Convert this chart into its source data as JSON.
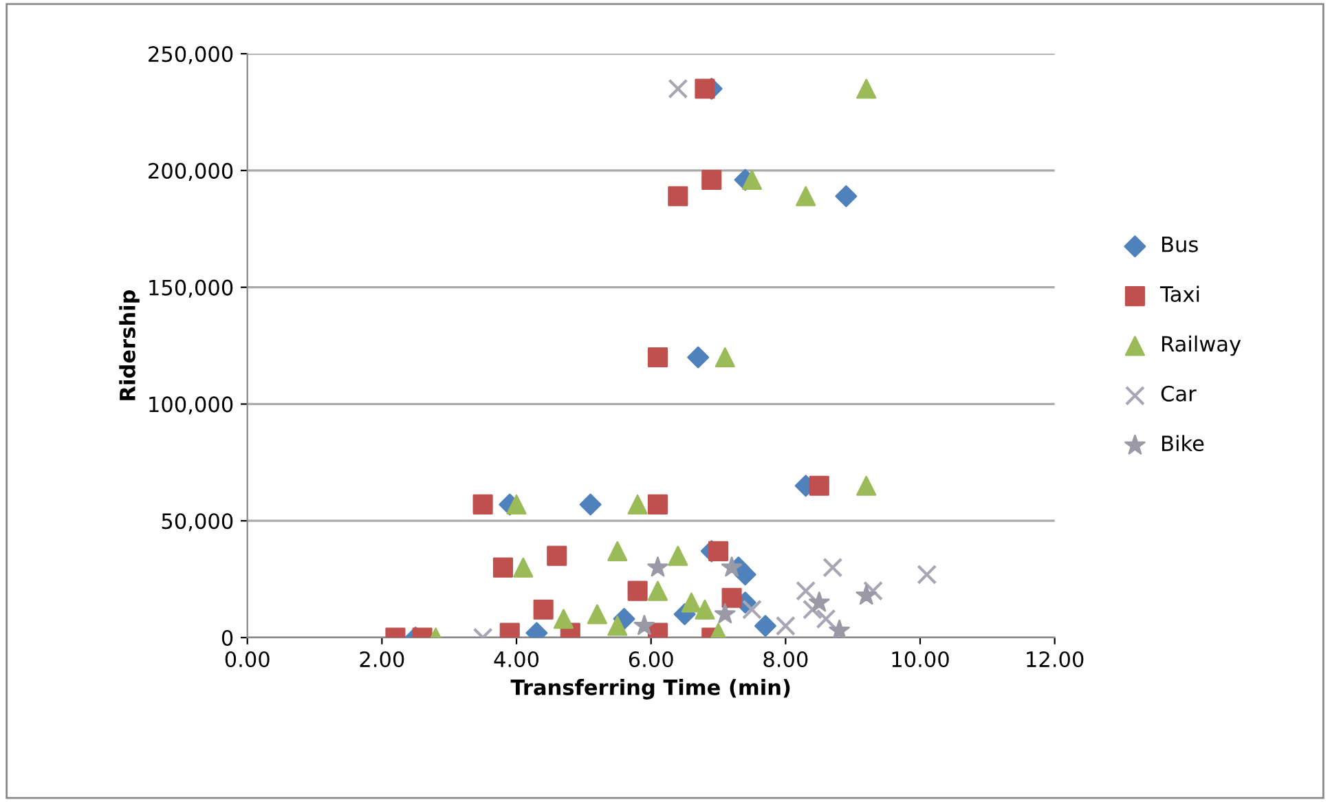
{
  "chart_data": {
    "type": "scatter",
    "xlabel": "Transferring Time (min)",
    "ylabel": "Ridership",
    "xlim": [
      0,
      12
    ],
    "xticks": [
      {
        "value": 0,
        "label": "0.00"
      },
      {
        "value": 2,
        "label": "2.00"
      },
      {
        "value": 4,
        "label": "4.00"
      },
      {
        "value": 6,
        "label": "6.00"
      },
      {
        "value": 8,
        "label": "8.00"
      },
      {
        "value": 10,
        "label": "10.00"
      },
      {
        "value": 12,
        "label": "12.00"
      }
    ],
    "ylim": [
      0,
      250000
    ],
    "yticks": [
      {
        "value": 0,
        "label": "0"
      },
      {
        "value": 50000,
        "label": "50,000"
      },
      {
        "value": 100000,
        "label": "100,000"
      },
      {
        "value": 150000,
        "label": "150,000"
      },
      {
        "value": 200000,
        "label": "200,000"
      },
      {
        "value": 250000,
        "label": "250,000"
      }
    ],
    "grid": "y",
    "legend": "right",
    "series": [
      {
        "name": "Bus",
        "color": "#4f81bd",
        "marker": "diamond",
        "x": [
          6.9,
          7.4,
          8.9,
          6.7,
          8.3,
          3.9,
          5.1,
          6.9,
          7.3,
          7.4,
          7.4,
          7.7,
          5.6,
          6.5,
          4.3,
          2.5
        ],
        "values": [
          235000,
          196000,
          189000,
          120000,
          65000,
          57000,
          57000,
          37000,
          30000,
          27000,
          15000,
          5000,
          8000,
          10000,
          2000,
          0
        ]
      },
      {
        "name": "Taxi",
        "color": "#c0504d",
        "marker": "square",
        "x": [
          6.8,
          6.9,
          6.4,
          6.1,
          8.5,
          3.5,
          6.1,
          3.8,
          4.6,
          7.0,
          7.2,
          5.8,
          4.4,
          2.2,
          2.6,
          4.8,
          6.1,
          6.9,
          3.9
        ],
        "values": [
          235000,
          196000,
          189000,
          120000,
          65000,
          57000,
          57000,
          30000,
          35000,
          37000,
          17000,
          20000,
          12000,
          0,
          0,
          2000,
          2000,
          0,
          2000
        ]
      },
      {
        "name": "Railway",
        "color": "#9bbb59",
        "marker": "triangle",
        "x": [
          9.2,
          7.5,
          8.3,
          7.1,
          9.2,
          4.0,
          5.8,
          5.5,
          6.4,
          4.1,
          6.1,
          6.6,
          5.2,
          2.8,
          5.5,
          7.0,
          4.7,
          6.8
        ],
        "values": [
          235000,
          196000,
          189000,
          120000,
          65000,
          57000,
          57000,
          37000,
          35000,
          30000,
          20000,
          15000,
          10000,
          0,
          5000,
          2000,
          8000,
          12000
        ]
      },
      {
        "name": "Car",
        "color": "#a6a6b4",
        "marker": "cross",
        "x": [
          6.4,
          8.7,
          10.1,
          8.3,
          9.3,
          8.0,
          8.6,
          3.5,
          7.5,
          8.4
        ],
        "values": [
          235000,
          30000,
          27000,
          20000,
          20000,
          5000,
          8000,
          0,
          12000,
          12000
        ]
      },
      {
        "name": "Bike",
        "color": "#9a9aa6",
        "marker": "star",
        "x": [
          7.2,
          6.1,
          8.5,
          9.2,
          8.8,
          7.1,
          5.9
        ],
        "values": [
          30000,
          30000,
          15000,
          18000,
          3000,
          10000,
          5000
        ]
      }
    ]
  }
}
